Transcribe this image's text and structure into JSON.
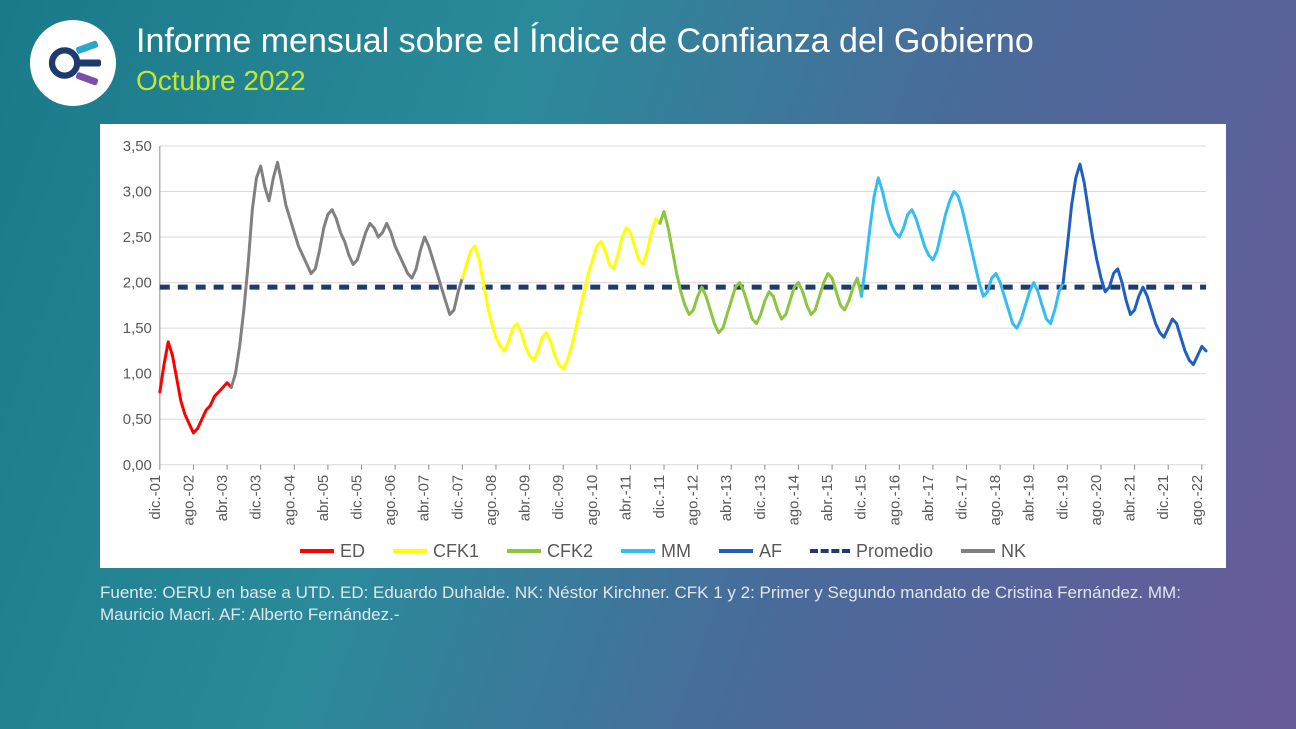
{
  "header": {
    "title": "Informe mensual sobre el Índice de Confianza del Gobierno",
    "subtitle": "Octubre 2022"
  },
  "footer": {
    "text": "Fuente: OERU en base a UTD. ED: Eduardo Duhalde. NK: Néstor Kirchner. CFK 1 y 2: Primer y Segundo mandato de Cristina Fernández.  MM: Mauricio Macri. AF: Alberto Fernández.-"
  },
  "chart": {
    "type": "line",
    "background_color": "#ffffff",
    "plot_background": "#ffffff",
    "grid_color": "#d9d9d9",
    "axis_color": "#8a8a8a",
    "tick_fontsize": 15,
    "tick_color": "#595959",
    "legend_fontsize": 18,
    "legend_color": "#595959",
    "line_width": 3,
    "ylim": [
      0,
      3.5
    ],
    "ytick_step": 0.5,
    "ytick_labels": [
      "0,00",
      "0,50",
      "1,00",
      "1,50",
      "2,00",
      "2,50",
      "3,00",
      "3,50"
    ],
    "x_start_index": 0,
    "x_end_index": 249,
    "x_ticks": [
      {
        "i": 0,
        "label": "dic.-01"
      },
      {
        "i": 8,
        "label": "ago.-02"
      },
      {
        "i": 16,
        "label": "abr.-03"
      },
      {
        "i": 24,
        "label": "dic.-03"
      },
      {
        "i": 32,
        "label": "ago.-04"
      },
      {
        "i": 40,
        "label": "abr.-05"
      },
      {
        "i": 48,
        "label": "dic.-05"
      },
      {
        "i": 56,
        "label": "ago.-06"
      },
      {
        "i": 64,
        "label": "abr.-07"
      },
      {
        "i": 72,
        "label": "dic.-07"
      },
      {
        "i": 80,
        "label": "ago.-08"
      },
      {
        "i": 88,
        "label": "abr.-09"
      },
      {
        "i": 96,
        "label": "dic.-09"
      },
      {
        "i": 104,
        "label": "ago.-10"
      },
      {
        "i": 112,
        "label": "abr.-11"
      },
      {
        "i": 120,
        "label": "dic.-11"
      },
      {
        "i": 128,
        "label": "ago.-12"
      },
      {
        "i": 136,
        "label": "abr.-13"
      },
      {
        "i": 144,
        "label": "dic.-13"
      },
      {
        "i": 152,
        "label": "ago.-14"
      },
      {
        "i": 160,
        "label": "abr.-15"
      },
      {
        "i": 168,
        "label": "dic.-15"
      },
      {
        "i": 176,
        "label": "ago.-16"
      },
      {
        "i": 184,
        "label": "abr.-17"
      },
      {
        "i": 192,
        "label": "dic.-17"
      },
      {
        "i": 200,
        "label": "ago.-18"
      },
      {
        "i": 208,
        "label": "abr.-19"
      },
      {
        "i": 216,
        "label": "dic.-19"
      },
      {
        "i": 224,
        "label": "ago.-20"
      },
      {
        "i": 232,
        "label": "abr.-21"
      },
      {
        "i": 240,
        "label": "dic.-21"
      },
      {
        "i": 248,
        "label": "ago.-22"
      }
    ],
    "average": {
      "label": "Promedio",
      "value": 1.95,
      "color": "#1f3a6e",
      "dash": "10,8",
      "width": 5
    },
    "series": [
      {
        "key": "ED",
        "label": "ED",
        "color": "#ff0000",
        "start": 0,
        "values": [
          0.8,
          1.1,
          1.35,
          1.2,
          0.95,
          0.7,
          0.55,
          0.45,
          0.35,
          0.4,
          0.5,
          0.6,
          0.65,
          0.75,
          0.8,
          0.85,
          0.9,
          0.85
        ]
      },
      {
        "key": "NK",
        "label": "NK",
        "color": "#808080",
        "start": 17,
        "values": [
          0.85,
          1.0,
          1.3,
          1.7,
          2.2,
          2.8,
          3.15,
          3.28,
          3.05,
          2.9,
          3.15,
          3.32,
          3.1,
          2.85,
          2.7,
          2.55,
          2.4,
          2.3,
          2.2,
          2.1,
          2.15,
          2.35,
          2.6,
          2.75,
          2.8,
          2.7,
          2.55,
          2.45,
          2.3,
          2.2,
          2.25,
          2.4,
          2.55,
          2.65,
          2.6,
          2.5,
          2.55,
          2.65,
          2.55,
          2.4,
          2.3,
          2.2,
          2.1,
          2.05,
          2.15,
          2.35,
          2.5,
          2.4,
          2.25,
          2.1,
          1.95,
          1.8,
          1.65,
          1.7,
          1.9,
          2.05
        ]
      },
      {
        "key": "CFK1",
        "label": "CFK1",
        "color": "#ffff00",
        "start": 72,
        "values": [
          2.05,
          2.2,
          2.35,
          2.4,
          2.25,
          2.0,
          1.75,
          1.55,
          1.4,
          1.3,
          1.25,
          1.35,
          1.5,
          1.55,
          1.45,
          1.3,
          1.2,
          1.15,
          1.25,
          1.4,
          1.45,
          1.35,
          1.2,
          1.1,
          1.05,
          1.15,
          1.3,
          1.5,
          1.7,
          1.9,
          2.1,
          2.25,
          2.4,
          2.45,
          2.35,
          2.2,
          2.15,
          2.3,
          2.5,
          2.6,
          2.55,
          2.4,
          2.25,
          2.2,
          2.35,
          2.55,
          2.7,
          2.65
        ]
      },
      {
        "key": "CFK2",
        "label": "CFK2",
        "color": "#8cc63f",
        "start": 119,
        "values": [
          2.65,
          2.78,
          2.6,
          2.35,
          2.1,
          1.9,
          1.75,
          1.65,
          1.7,
          1.85,
          1.95,
          1.85,
          1.7,
          1.55,
          1.45,
          1.5,
          1.65,
          1.8,
          1.95,
          2.0,
          1.9,
          1.75,
          1.6,
          1.55,
          1.65,
          1.8,
          1.9,
          1.85,
          1.7,
          1.6,
          1.65,
          1.8,
          1.95,
          2.0,
          1.9,
          1.75,
          1.65,
          1.7,
          1.85,
          2.0,
          2.1,
          2.05,
          1.9,
          1.75,
          1.7,
          1.8,
          1.95,
          2.05,
          1.85
        ]
      },
      {
        "key": "MM",
        "label": "MM",
        "color": "#33bdf2",
        "start": 167,
        "values": [
          1.85,
          2.2,
          2.6,
          2.95,
          3.15,
          3.0,
          2.8,
          2.65,
          2.55,
          2.5,
          2.6,
          2.75,
          2.8,
          2.7,
          2.55,
          2.4,
          2.3,
          2.25,
          2.35,
          2.55,
          2.75,
          2.9,
          3.0,
          2.95,
          2.8,
          2.6,
          2.4,
          2.2,
          2.0,
          1.85,
          1.9,
          2.05,
          2.1,
          2.0,
          1.85,
          1.7,
          1.55,
          1.5,
          1.6,
          1.75,
          1.9,
          2.0,
          1.9,
          1.75,
          1.6,
          1.55,
          1.7,
          1.9,
          2.0
        ]
      },
      {
        "key": "AF",
        "label": "AF",
        "color": "#1f5fbf",
        "start": 215,
        "values": [
          2.0,
          2.4,
          2.85,
          3.15,
          3.3,
          3.1,
          2.8,
          2.5,
          2.25,
          2.05,
          1.9,
          1.95,
          2.1,
          2.15,
          2.0,
          1.8,
          1.65,
          1.7,
          1.85,
          1.95,
          1.85,
          1.7,
          1.55,
          1.45,
          1.4,
          1.5,
          1.6,
          1.55,
          1.4,
          1.25,
          1.15,
          1.1,
          1.2,
          1.3,
          1.25
        ]
      }
    ],
    "legend_order": [
      "ED",
      "CFK1",
      "CFK2",
      "MM",
      "AF",
      "Promedio",
      "NK"
    ]
  },
  "logo": {
    "ring_color": "#1f3a6e",
    "bars": [
      "#2aa8c8",
      "#1f3a6e",
      "#7b4fa8"
    ]
  }
}
